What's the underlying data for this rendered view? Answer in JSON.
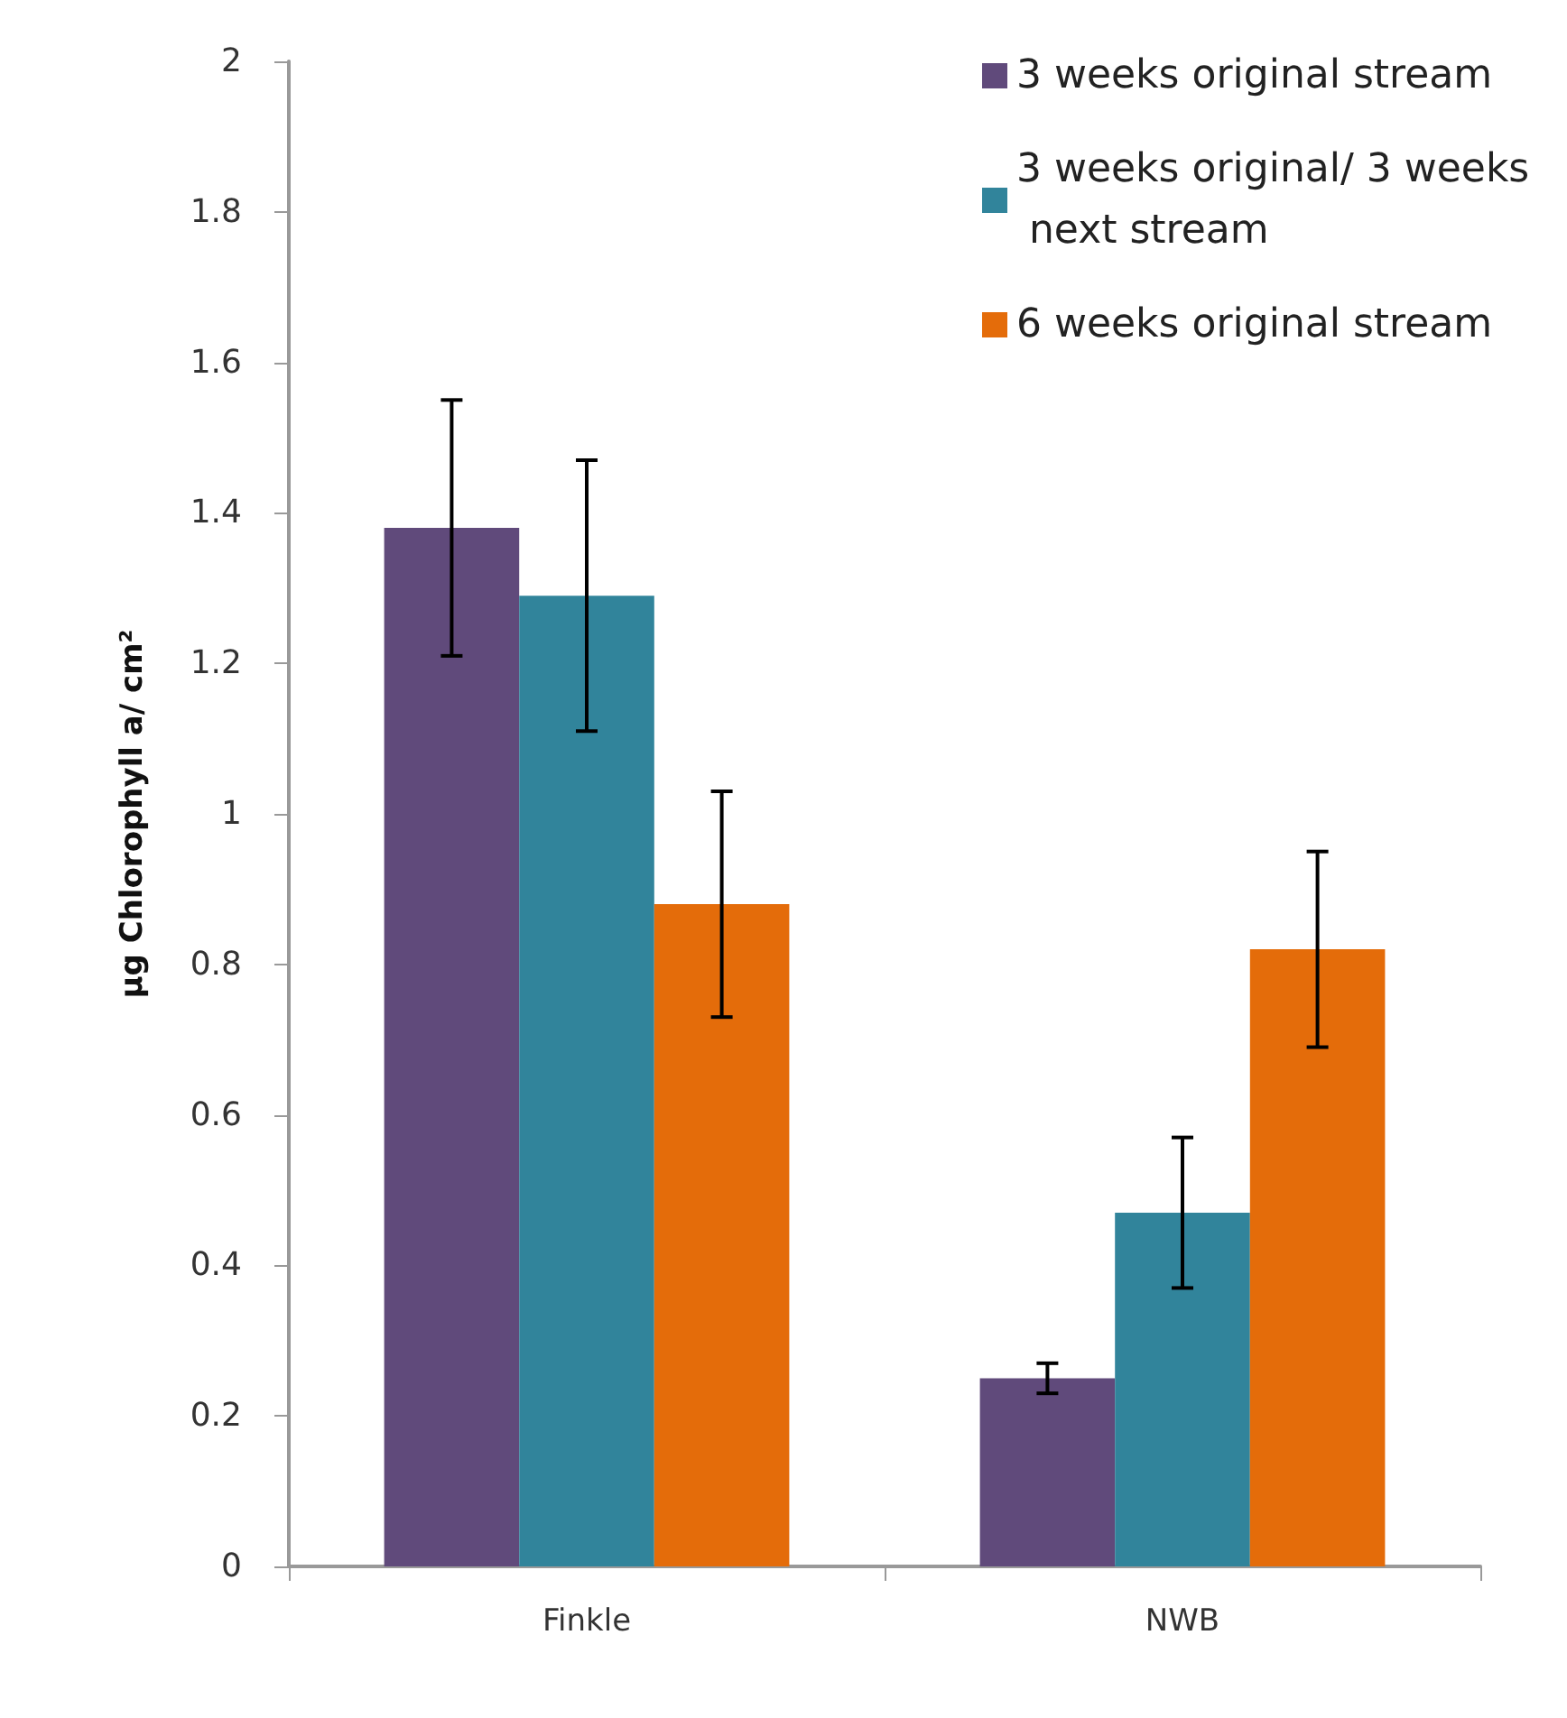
{
  "chart_data": {
    "type": "bar",
    "ylabel": "μg Chlorophyll a/ cm²",
    "categories": [
      "Finkle",
      "NWB"
    ],
    "series": [
      {
        "name": "3 weeks original stream",
        "color": "#604a7b",
        "values": [
          1.38,
          0.25
        ],
        "errors": [
          0.17,
          0.02
        ]
      },
      {
        "name": "3 weeks original/ 3 weeks next stream",
        "color": "#31849b",
        "values": [
          1.29,
          0.47
        ],
        "errors": [
          0.18,
          0.1
        ]
      },
      {
        "name": "6 weeks original stream",
        "color": "#e46c0a",
        "values": [
          0.88,
          0.82
        ],
        "errors": [
          0.15,
          0.13
        ]
      }
    ],
    "ylim": [
      0,
      2
    ],
    "yticks": [
      0,
      0.2,
      0.4,
      0.6,
      0.8,
      1,
      1.2,
      1.4,
      1.6,
      1.8,
      2
    ],
    "grid": false,
    "legend": "top right"
  }
}
